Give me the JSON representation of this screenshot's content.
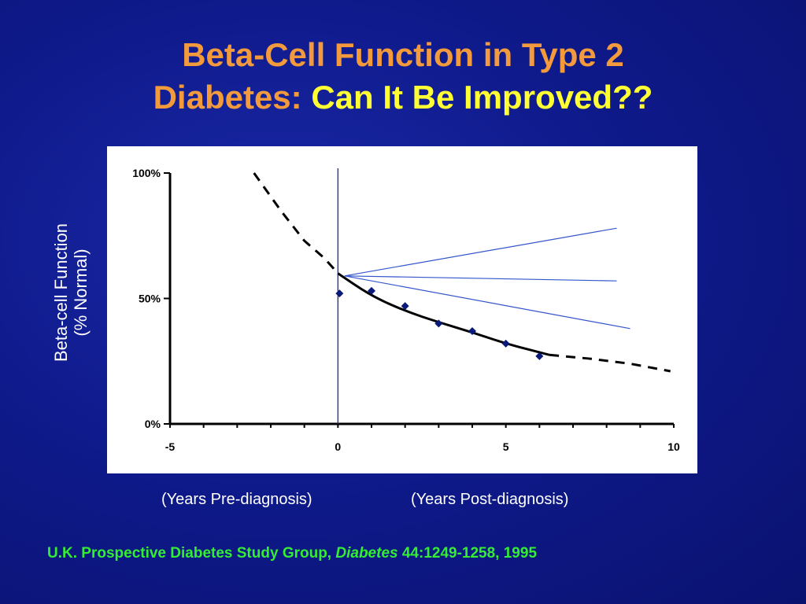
{
  "slide": {
    "title_line1": "Beta-Cell Function in Type 2",
    "title_line2_a": "Diabetes: ",
    "title_line2_b": "Can It Be Improved??",
    "ylabel_line1": "Beta-cell Function",
    "ylabel_line2": "(% Normal)",
    "xcaption_pre": "(Years Pre-diagnosis)",
    "xcaption_post": "(Years Post-diagnosis)",
    "citation_a": "U.K. Prospective Diabetes Study Group, ",
    "citation_journal": "Diabetes",
    "citation_b": " 44:1249-1258, 1995",
    "colors": {
      "title_orange": "#f29a3c",
      "title_yellow": "#ffff33",
      "citation_green": "#33ee33",
      "background": "#0f1a8c",
      "marker": "#0a1a7a",
      "projection_line": "#3355cc"
    }
  },
  "chart_data": {
    "type": "scatter",
    "xlim": [
      -5,
      10
    ],
    "ylim": [
      0,
      100
    ],
    "x_ticks": [
      "-5",
      "0",
      "5",
      "10"
    ],
    "y_ticks": [
      "0%",
      "50%",
      "100%"
    ],
    "grid": false,
    "observed_points": {
      "x": [
        0,
        1,
        2,
        3,
        4,
        5,
        6
      ],
      "y": [
        52,
        53,
        47,
        40,
        37,
        32,
        27
      ]
    },
    "fitted_curve_solid": {
      "x": [
        0,
        1,
        2,
        3,
        4,
        5,
        6.3
      ],
      "y": [
        60,
        51,
        45,
        40.5,
        36.5,
        32,
        27.5
      ]
    },
    "extrapolation_dashed_pre": {
      "x": [
        -2.5,
        -1.7,
        -1,
        -0.4,
        0
      ],
      "y": [
        100,
        85,
        73,
        66,
        60
      ]
    },
    "extrapolation_dashed_post": {
      "x": [
        6.3,
        7.5,
        8.7,
        9.9
      ],
      "y": [
        27.5,
        26,
        24,
        21
      ]
    },
    "reference_vline_x": 0,
    "projection_lines": [
      {
        "x": [
          0.2,
          8.3
        ],
        "y": [
          59,
          78
        ]
      },
      {
        "x": [
          0.2,
          8.3
        ],
        "y": [
          59,
          57
        ]
      },
      {
        "x": [
          0.2,
          8.7
        ],
        "y": [
          59,
          38
        ]
      }
    ]
  }
}
